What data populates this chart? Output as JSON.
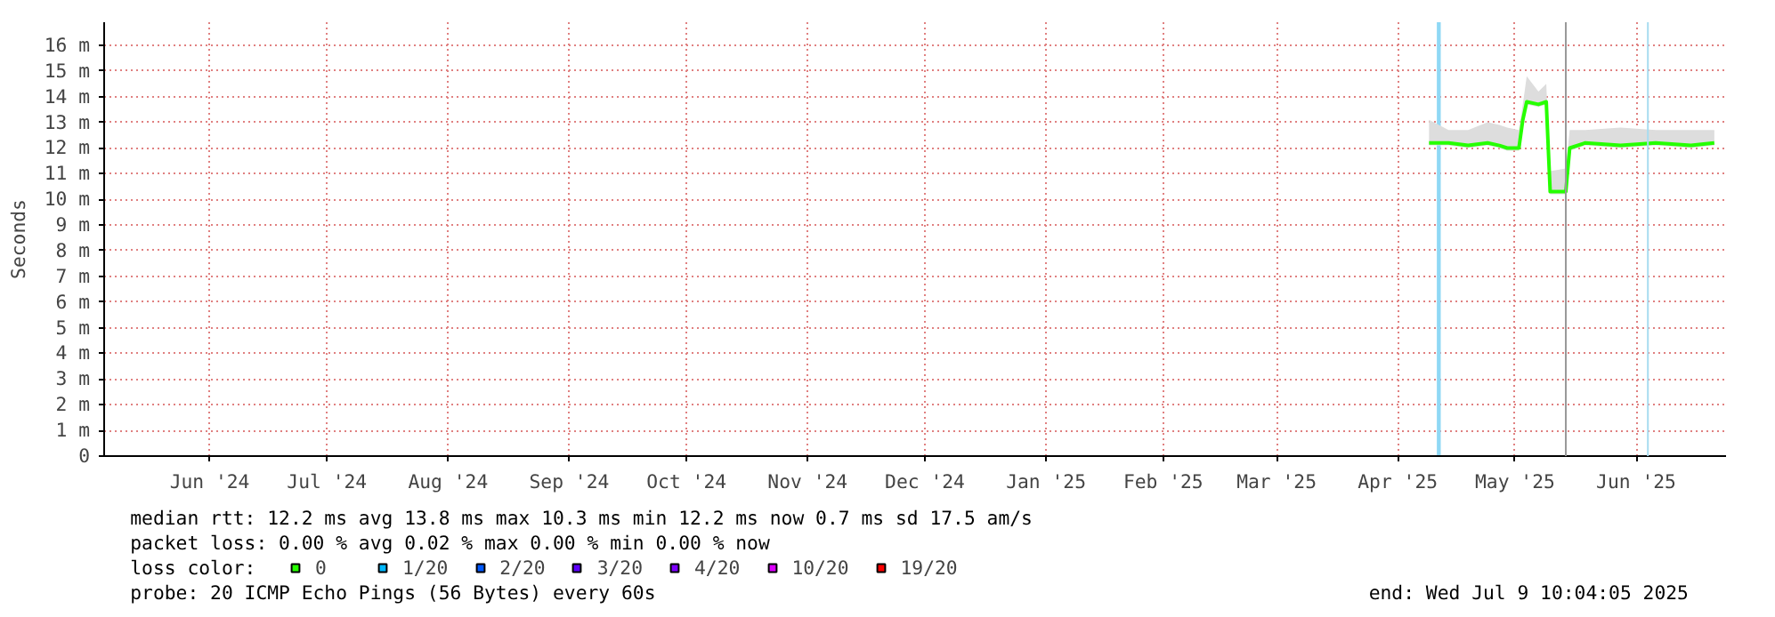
{
  "chart_data": {
    "type": "line",
    "ylabel": "Seconds",
    "legend_title": "loss color:",
    "legend": "bottom",
    "x": [
      "2025-04-24",
      "2025-04-29",
      "2025-05-04",
      "2025-05-09",
      "2025-05-12",
      "2025-05-14",
      "2025-05-17",
      "2025-05-18",
      "2025-05-19",
      "2025-05-22",
      "2025-05-24",
      "2025-05-25",
      "2025-05-29",
      "2025-05-30",
      "2025-06-03",
      "2025-06-12",
      "2025-06-21",
      "2025-06-30",
      "2025-07-06"
    ],
    "series": [
      {
        "name": "0",
        "color": "#26ff00",
        "values": [
          12.2,
          12.2,
          12.1,
          12.2,
          12.1,
          12.0,
          12.0,
          13.1,
          13.8,
          13.7,
          13.8,
          10.3,
          10.3,
          12.0,
          12.2,
          12.1,
          12.2,
          12.1,
          12.2
        ],
        "lower": [
          12.1,
          12.1,
          12.0,
          12.1,
          12.0,
          11.9,
          11.9,
          13.0,
          13.7,
          13.6,
          13.7,
          10.2,
          10.2,
          11.9,
          12.1,
          12.0,
          12.1,
          12.0,
          12.1
        ],
        "upper": [
          13.1,
          12.7,
          12.7,
          13.0,
          12.9,
          12.8,
          12.7,
          13.7,
          14.8,
          14.2,
          14.5,
          11.1,
          11.2,
          12.7,
          12.7,
          12.8,
          12.7,
          12.7,
          12.7
        ]
      },
      {
        "name": "1/20",
        "color": "#00b8ff",
        "values": [
          null,
          null,
          null,
          null,
          null,
          null,
          null,
          null,
          null,
          null,
          null,
          null,
          null,
          null,
          null,
          null,
          null,
          null,
          null
        ]
      },
      {
        "name": "2/20",
        "color": "#0059ff",
        "values": [
          null,
          null,
          null,
          null,
          null,
          null,
          null,
          null,
          null,
          null,
          null,
          null,
          null,
          null,
          null,
          null,
          null,
          null,
          null
        ]
      },
      {
        "name": "3/20",
        "color": "#5e00ff",
        "values": [
          null,
          null,
          null,
          null,
          null,
          null,
          null,
          null,
          null,
          null,
          null,
          null,
          null,
          null,
          null,
          null,
          null,
          null,
          null
        ]
      },
      {
        "name": "4/20",
        "color": "#7e00ff",
        "values": [
          null,
          null,
          null,
          null,
          null,
          null,
          null,
          null,
          null,
          null,
          null,
          null,
          null,
          null,
          null,
          null,
          null,
          null,
          null
        ]
      },
      {
        "name": "10/20",
        "color": "#dd00ff",
        "values": [
          null,
          null,
          null,
          null,
          null,
          null,
          null,
          null,
          null,
          null,
          null,
          null,
          null,
          null,
          null,
          null,
          null,
          null,
          null
        ]
      },
      {
        "name": "19/20",
        "color": "#ff0000",
        "values": [
          null,
          null,
          null,
          null,
          null,
          null,
          null,
          null,
          null,
          null,
          null,
          null,
          null,
          null,
          null,
          null,
          null,
          null,
          null
        ]
      }
    ],
    "bands": [
      {
        "axis": "x",
        "from": "2025-04-26",
        "to": "2025-04-27",
        "color": "#8fd8f5"
      }
    ],
    "ref_lines": [
      {
        "axis": "x",
        "value": "2025-05-29",
        "color": "#999999"
      },
      {
        "axis": "x",
        "value": "2025-06-19",
        "color": "#a8dcf0"
      }
    ],
    "xlim": [
      "2024-05-20",
      "2025-07-09"
    ],
    "xticks": [
      {
        "value": "2024-06-16",
        "label": "Jun '24"
      },
      {
        "value": "2024-07-16",
        "label": "Jul '24"
      },
      {
        "value": "2024-08-16",
        "label": "Aug '24"
      },
      {
        "value": "2024-09-16",
        "label": "Sep '24"
      },
      {
        "value": "2024-10-16",
        "label": "Oct '24"
      },
      {
        "value": "2024-11-16",
        "label": "Nov '24"
      },
      {
        "value": "2024-12-16",
        "label": "Dec '24"
      },
      {
        "value": "2025-01-16",
        "label": "Jan '25"
      },
      {
        "value": "2025-02-15",
        "label": "Feb '25"
      },
      {
        "value": "2025-03-16",
        "label": "Mar '25"
      },
      {
        "value": "2025-04-16",
        "label": "Apr '25"
      },
      {
        "value": "2025-05-16",
        "label": "May '25"
      },
      {
        "value": "2025-06-16",
        "label": "Jun '25"
      }
    ],
    "ylim": [
      0,
      16.9
    ],
    "yticks": [
      0,
      {
        "value": 1,
        "label": "1 m"
      },
      {
        "value": 2,
        "label": "2 m"
      },
      {
        "value": 3,
        "label": "3 m"
      },
      {
        "value": 4,
        "label": "4 m"
      },
      {
        "value": 5,
        "label": "5 m"
      },
      {
        "value": 6,
        "label": "6 m"
      },
      {
        "value": 7,
        "label": "7 m"
      },
      {
        "value": 8,
        "label": "8 m"
      },
      {
        "value": 9,
        "label": "9 m"
      },
      {
        "value": 10,
        "label": "10 m"
      },
      {
        "value": 11,
        "label": "11 m"
      },
      {
        "value": 12,
        "label": "12 m"
      },
      {
        "value": 13,
        "label": "13 m"
      },
      {
        "value": 14,
        "label": "14 m"
      },
      {
        "value": 15,
        "label": "15 m"
      },
      {
        "value": 16,
        "label": "16 m"
      }
    ],
    "grid": true,
    "annotations": [
      "median rtt:  12.2 ms avg  13.8 ms max  10.3 ms min  12.2 ms now  0.7 ms sd  17.5   am/s",
      "packet loss: 0.00 % avg  0.02 % max  0.00 % min  0.00 % now",
      "probe:       20 ICMP Echo Pings (56 Bytes) every 60s",
      "end: Wed Jul  9 10:04:05 2025"
    ]
  }
}
